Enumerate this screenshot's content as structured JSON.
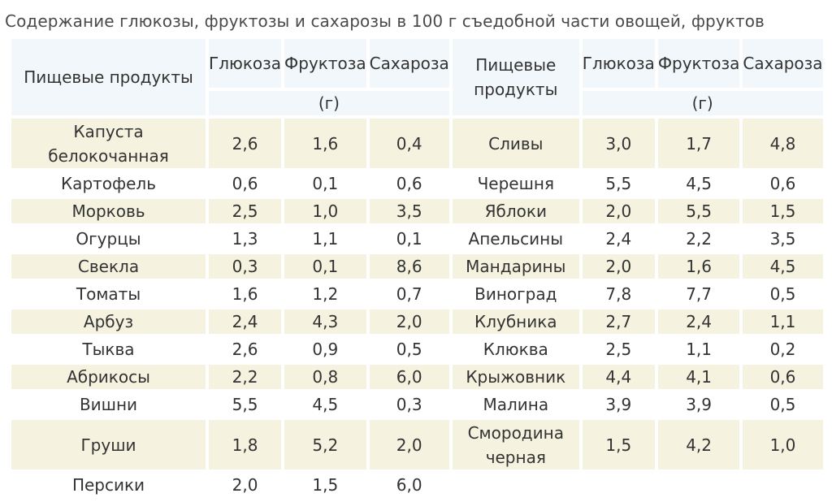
{
  "title": "Содержание глюкозы, фруктозы и сахарозы в 100 г съедобной части овощей, фруктов",
  "headers": {
    "product": "Пищевые продукты",
    "product_right": "Пищевые продукты",
    "glucose": "Глюкоза",
    "fructose": "Фруктоза",
    "sucrose": "Сахароза",
    "unit": "(г)"
  },
  "rows": [
    {
      "p1": "Капуста белокочанная",
      "g1": "2,6",
      "f1": "1,6",
      "s1": "0,4",
      "p2": "Сливы",
      "g2": "3,0",
      "f2": "1,7",
      "s2": "4,8"
    },
    {
      "p1": "Картофель",
      "g1": "0,6",
      "f1": "0,1",
      "s1": "0,6",
      "p2": "Черешня",
      "g2": "5,5",
      "f2": "4,5",
      "s2": "0,6"
    },
    {
      "p1": "Морковь",
      "g1": "2,5",
      "f1": "1,0",
      "s1": "3,5",
      "p2": "Яблоки",
      "g2": "2,0",
      "f2": "5,5",
      "s2": "1,5"
    },
    {
      "p1": "Огурцы",
      "g1": "1,3",
      "f1": "1,1",
      "s1": "0,1",
      "p2": "Апельсины",
      "g2": "2,4",
      "f2": "2,2",
      "s2": "3,5"
    },
    {
      "p1": "Свекла",
      "g1": "0,3",
      "f1": "0,1",
      "s1": "8,6",
      "p2": "Мандарины",
      "g2": "2,0",
      "f2": "1,6",
      "s2": "4,5"
    },
    {
      "p1": "Томаты",
      "g1": "1,6",
      "f1": "1,2",
      "s1": "0,7",
      "p2": "Виноград",
      "g2": "7,8",
      "f2": "7,7",
      "s2": "0,5"
    },
    {
      "p1": "Арбуз",
      "g1": "2,4",
      "f1": "4,3",
      "s1": "2,0",
      "p2": "Клубника",
      "g2": "2,7",
      "f2": "2,4",
      "s2": "1,1"
    },
    {
      "p1": "Тыква",
      "g1": "2,6",
      "f1": "0,9",
      "s1": "0,5",
      "p2": "Клюква",
      "g2": "2,5",
      "f2": "1,1",
      "s2": "0,2"
    },
    {
      "p1": "Абрикосы",
      "g1": "2,2",
      "f1": "0,8",
      "s1": "6,0",
      "p2": "Крыжовник",
      "g2": "4,4",
      "f2": "4,1",
      "s2": "0,6"
    },
    {
      "p1": "Вишни",
      "g1": "5,5",
      "f1": "4,5",
      "s1": "0,3",
      "p2": "Малина",
      "g2": "3,9",
      "f2": "3,9",
      "s2": "0,5"
    },
    {
      "p1": "Груши",
      "g1": "1,8",
      "f1": "5,2",
      "s1": "2,0",
      "p2": "Смородина черная",
      "g2": "1,5",
      "f2": "4,2",
      "s2": "1,0"
    },
    {
      "p1": "Персики",
      "g1": "2,0",
      "f1": "1,5",
      "s1": "6,0",
      "p2": "",
      "g2": "",
      "f2": "",
      "s2": ""
    }
  ]
}
